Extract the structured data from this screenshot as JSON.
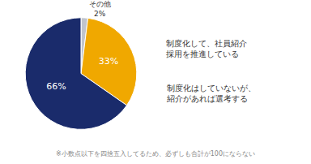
{
  "chart_data": {
    "type": "pie",
    "categories": [
      "その他",
      null,
      null
    ],
    "values": [
      2,
      33,
      66
    ],
    "value_labels": [
      "2%",
      "33%",
      "66%"
    ],
    "colors": [
      "#c0c4cc",
      "#f0a800",
      "#1a2b6b"
    ],
    "data_labels": true,
    "annotations": [
      "制度化して、社員紹介\n採用を推進している",
      "制度化はしていないが、\n紹介があれば選考する",
      "※小数点以下を四捨五入してるため、必ずしも合計が100にならない"
    ]
  }
}
